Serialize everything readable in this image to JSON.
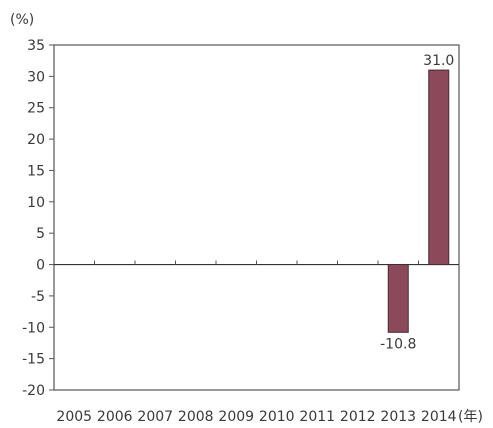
{
  "chart_data": {
    "type": "bar",
    "y_unit_label": "(%)",
    "x_unit_label": "(年)",
    "categories": [
      "2005",
      "2006",
      "2007",
      "2008",
      "2009",
      "2010",
      "2011",
      "2012",
      "2013",
      "2014"
    ],
    "values": [
      0,
      0,
      0,
      0,
      0,
      0,
      0,
      0,
      -10.8,
      31.0
    ],
    "data_labels": [
      "",
      "",
      "",
      "",
      "",
      "",
      "",
      "",
      "-10.8",
      "31.0"
    ],
    "yticks": [
      "35",
      "30",
      "25",
      "20",
      "15",
      "10",
      "5",
      "0",
      "-5",
      "-10",
      "-15",
      "-20"
    ],
    "ylim": [
      -20,
      35
    ],
    "grid": false,
    "bar_color": "#8b4a5a"
  }
}
